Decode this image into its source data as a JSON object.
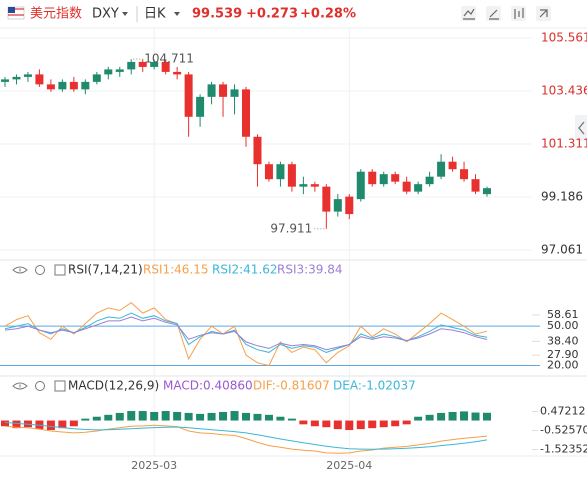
{
  "header": {
    "name": "美元指数",
    "symbol": "DXY",
    "period": "日K",
    "price": "99.539",
    "change": "+0.273",
    "change_pct": "+0.28%"
  },
  "chart_data": [
    {
      "type": "candlestick",
      "categories": [
        null,
        null,
        null,
        null,
        null,
        null,
        null,
        null,
        null,
        null,
        null,
        null,
        null,
        "2025-03",
        null,
        null,
        null,
        null,
        null,
        null,
        null,
        null,
        null,
        null,
        null,
        null,
        null,
        null,
        null,
        null,
        "2025-04",
        null,
        null,
        null,
        null,
        null,
        null,
        null,
        null,
        null,
        null,
        null,
        null
      ],
      "open": [
        103.8,
        103.9,
        104.0,
        104.1,
        103.7,
        103.5,
        103.8,
        103.5,
        103.8,
        104.1,
        104.2,
        104.3,
        104.6,
        104.4,
        104.6,
        104.2,
        104.1,
        102.4,
        103.2,
        103.7,
        103.2,
        103.5,
        101.6,
        100.5,
        99.9,
        100.5,
        99.6,
        99.7,
        99.6,
        98.6,
        99.2,
        99.1,
        100.2,
        99.7,
        100.1,
        99.8,
        99.4,
        99.7,
        100.0,
        100.6,
        100.3,
        99.9,
        99.3
      ],
      "high": [
        104.0,
        104.1,
        104.2,
        104.3,
        103.9,
        103.9,
        104.0,
        103.9,
        104.2,
        104.4,
        104.4,
        104.711,
        104.7,
        104.7,
        104.7,
        104.4,
        104.2,
        103.3,
        103.8,
        103.8,
        103.7,
        103.6,
        101.7,
        100.6,
        100.6,
        100.6,
        100.0,
        99.8,
        99.7,
        99.3,
        99.3,
        100.3,
        100.3,
        100.2,
        100.2,
        100.0,
        99.8,
        100.2,
        100.9,
        100.8,
        100.6,
        100.1,
        99.6
      ],
      "low": [
        103.6,
        103.7,
        103.8,
        103.6,
        103.4,
        103.4,
        103.4,
        103.3,
        103.7,
        103.9,
        104.0,
        104.1,
        104.2,
        104.3,
        104.1,
        103.9,
        101.6,
        102.0,
        102.9,
        102.4,
        102.5,
        101.2,
        99.6,
        99.8,
        99.6,
        99.4,
        99.3,
        99.4,
        97.911,
        98.4,
        98.3,
        99.0,
        99.6,
        99.6,
        99.7,
        99.3,
        99.3,
        99.6,
        99.9,
        100.2,
        99.8,
        99.3,
        99.2
      ],
      "close": [
        103.9,
        104.0,
        104.1,
        103.7,
        103.5,
        103.8,
        103.5,
        103.8,
        104.1,
        104.3,
        104.3,
        104.6,
        104.4,
        104.6,
        104.2,
        104.1,
        102.4,
        103.2,
        103.7,
        103.2,
        103.5,
        101.6,
        100.5,
        99.9,
        100.5,
        99.6,
        99.7,
        99.6,
        98.6,
        99.1,
        98.5,
        100.2,
        99.7,
        100.1,
        99.8,
        99.4,
        99.7,
        100.0,
        100.6,
        100.3,
        99.9,
        99.4,
        99.539
      ],
      "up_color": "#1f8a6c",
      "down_color": "#e8302e",
      "up_label_color": "#d9302c",
      "down_label_color": "#333333",
      "ylim": [
        96.74,
        105.96
      ],
      "yticks": [
        105.561,
        103.436,
        101.311,
        99.186,
        97.061
      ],
      "grid": true,
      "annotations": [
        104.711,
        97.911
      ]
    },
    {
      "type": "line",
      "title": "RSI(7,14,21)",
      "ylim": [
        15,
        70
      ],
      "yticks": [
        58.61,
        {
          "value": 50,
          "label": "50.00"
        },
        {
          "value": 38.4,
          "label": "38.40"
        },
        {
          "value": 27.9,
          "label": "27.90"
        },
        {
          "value": 20,
          "label": "20.00"
        }
      ],
      "level_color": "#5aa9e6",
      "series": [
        {
          "name": "RSI1:46.15",
          "color": "#f5a04a",
          "values": [
            50,
            55,
            58,
            45,
            40,
            50,
            44,
            52,
            60,
            64,
            62,
            68,
            60,
            64,
            55,
            52,
            25,
            40,
            50,
            44,
            50,
            28,
            22,
            20,
            38,
            30,
            34,
            32,
            22,
            30,
            35,
            50,
            42,
            48,
            44,
            38,
            45,
            52,
            60,
            55,
            50,
            44,
            46.15
          ]
        },
        {
          "name": "RSI2:41.62",
          "color": "#3ab7d8",
          "values": [
            48,
            50,
            52,
            47,
            44,
            48,
            45,
            49,
            54,
            57,
            56,
            60,
            56,
            58,
            54,
            52,
            36,
            42,
            46,
            44,
            47,
            36,
            32,
            30,
            36,
            33,
            35,
            34,
            30,
            33,
            36,
            44,
            41,
            44,
            42,
            39,
            42,
            46,
            51,
            49,
            47,
            43,
            41.62
          ]
        },
        {
          "name": "RSI3:39.84",
          "color": "#9b7fd6",
          "values": [
            47,
            48,
            50,
            47,
            45,
            47,
            45,
            48,
            51,
            54,
            54,
            57,
            54,
            56,
            53,
            51,
            40,
            43,
            45,
            44,
            46,
            38,
            35,
            33,
            37,
            35,
            36,
            35,
            32,
            34,
            36,
            42,
            40,
            42,
            41,
            39,
            41,
            44,
            48,
            47,
            45,
            42,
            39.84
          ]
        }
      ]
    },
    {
      "type": "macd",
      "title": "MACD(12,26,9)",
      "ylim": [
        -2.6,
        1.5
      ],
      "yticks": [
        0.47212,
        {
          "value": -0.5257,
          "label": "-0.52570"
        },
        -1.52352
      ],
      "series": [
        {
          "name": "MACD:0.40860",
          "color": "#9b59d0",
          "up_color": "#1f8a6c",
          "down_color": "#e8302e",
          "values": [
            -0.3,
            -0.4,
            -0.35,
            -0.45,
            -0.5,
            -0.4,
            -0.3,
            0.1,
            0.2,
            0.3,
            0.4,
            0.5,
            0.5,
            0.45,
            0.5,
            0.45,
            0.4,
            0.35,
            0.4,
            0.45,
            0.5,
            0.4,
            0.35,
            0.3,
            0.2,
            0.1,
            -0.2,
            -0.3,
            -0.35,
            -0.45,
            -0.5,
            -0.45,
            -0.4,
            -0.35,
            -0.3,
            -0.2,
            0.2,
            0.3,
            0.4,
            0.45,
            0.48,
            0.42,
            0.4086
          ]
        },
        {
          "name": "DIF:-0.81607",
          "color": "#f5a04a",
          "values": [
            -0.3,
            -0.35,
            -0.38,
            -0.45,
            -0.55,
            -0.6,
            -0.65,
            -0.62,
            -0.55,
            -0.45,
            -0.38,
            -0.3,
            -0.28,
            -0.25,
            -0.28,
            -0.32,
            -0.55,
            -0.65,
            -0.68,
            -0.75,
            -0.78,
            -0.95,
            -1.15,
            -1.32,
            -1.4,
            -1.5,
            -1.56,
            -1.6,
            -1.7,
            -1.72,
            -1.7,
            -1.6,
            -1.55,
            -1.45,
            -1.4,
            -1.36,
            -1.28,
            -1.2,
            -1.08,
            -1.0,
            -0.93,
            -0.88,
            -0.81607
          ]
        },
        {
          "name": "DEA:-1.02037",
          "color": "#3ab7d8",
          "values": [
            -0.1,
            -0.15,
            -0.2,
            -0.25,
            -0.31,
            -0.37,
            -0.43,
            -0.47,
            -0.49,
            -0.48,
            -0.46,
            -0.43,
            -0.4,
            -0.37,
            -0.35,
            -0.34,
            -0.38,
            -0.43,
            -0.48,
            -0.53,
            -0.58,
            -0.65,
            -0.75,
            -0.86,
            -0.97,
            -1.07,
            -1.17,
            -1.26,
            -1.35,
            -1.42,
            -1.48,
            -1.5,
            -1.51,
            -1.5,
            -1.48,
            -1.46,
            -1.42,
            -1.38,
            -1.32,
            -1.26,
            -1.19,
            -1.12,
            -1.02037
          ]
        }
      ]
    }
  ]
}
